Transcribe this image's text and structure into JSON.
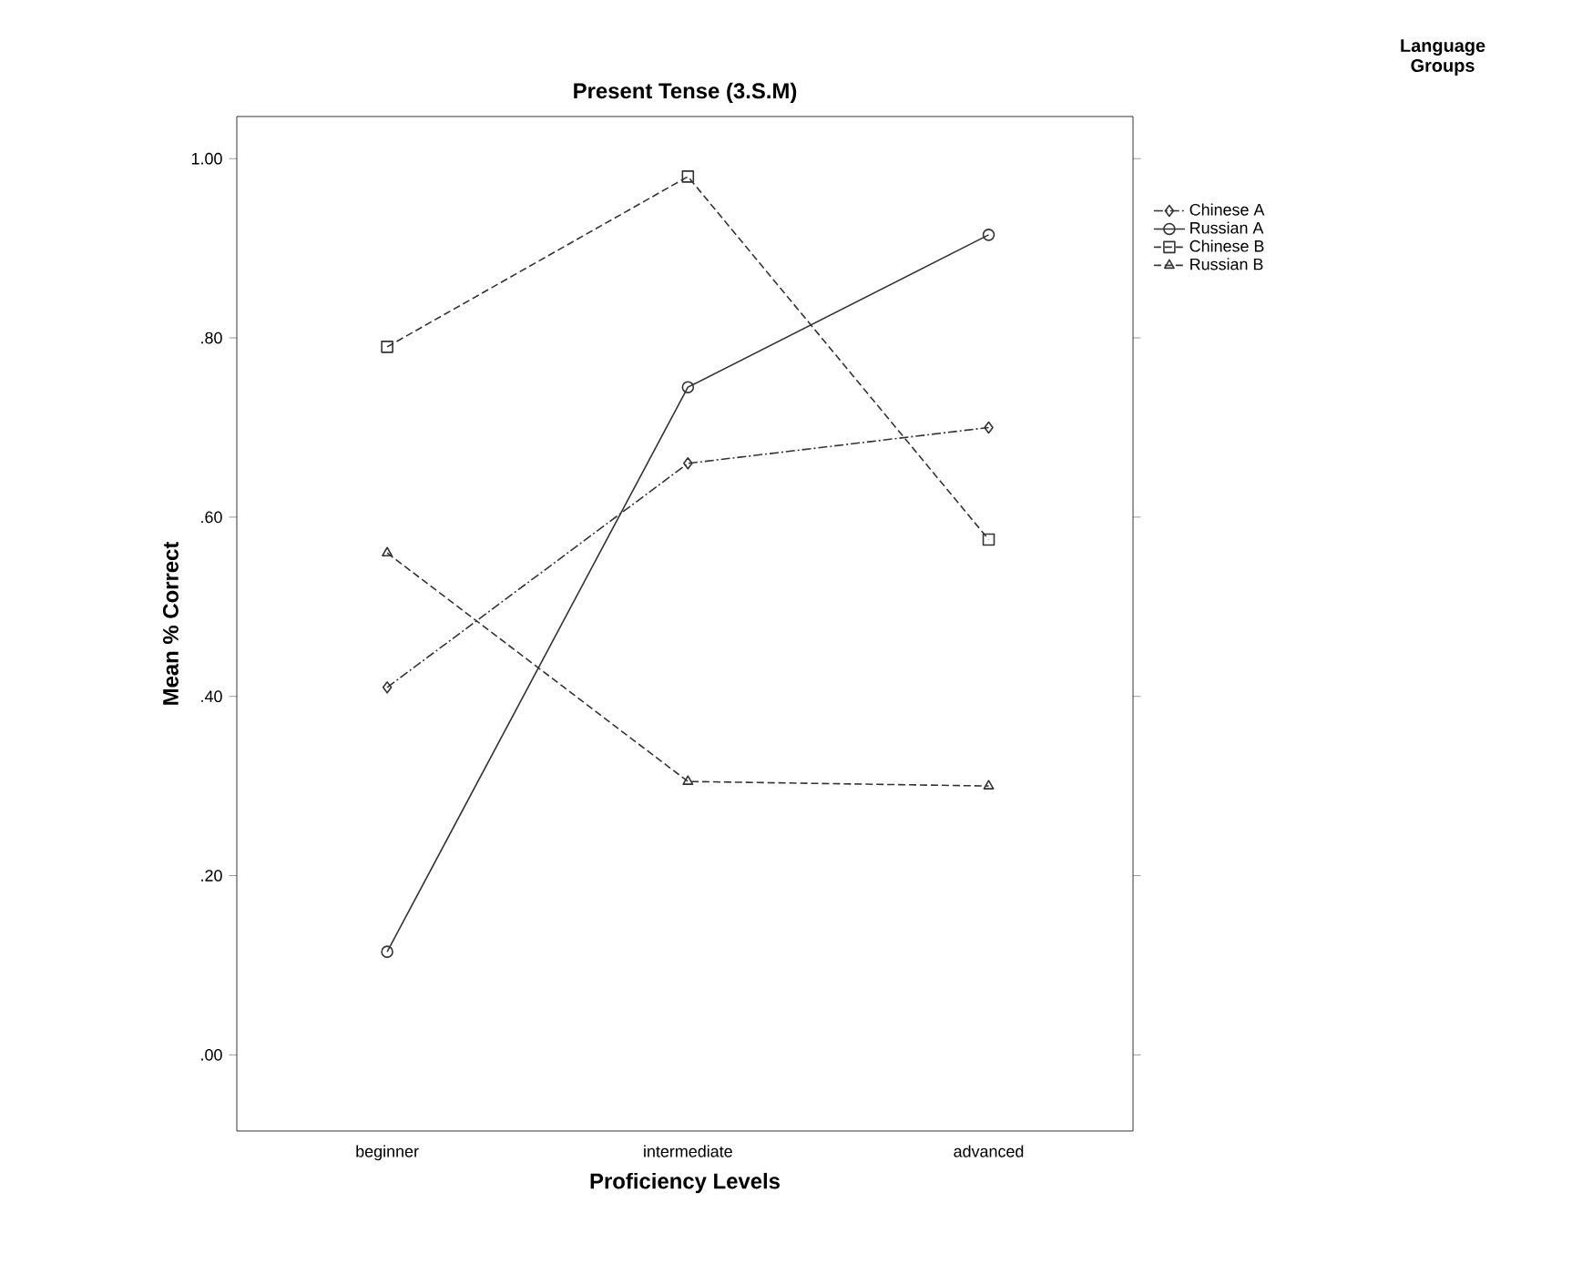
{
  "chart_data": {
    "type": "line",
    "title": "Present Tense (3.S.M)",
    "xlabel": "Proficiency Levels",
    "ylabel": "Mean % Correct",
    "legend_title": "Language Groups",
    "categories": [
      "beginner",
      "intermediate",
      "advanced"
    ],
    "series": [
      {
        "name": "Chinese A",
        "color": "#333333",
        "line_style": "dashdot",
        "marker": "diamond",
        "values": [
          0.41,
          0.66,
          0.7
        ]
      },
      {
        "name": "Russian A",
        "color": "#333333",
        "line_style": "solid",
        "marker": "circle",
        "values": [
          0.115,
          0.745,
          0.915
        ]
      },
      {
        "name": "Chinese B",
        "color": "#333333",
        "line_style": "dashed",
        "marker": "square",
        "values": [
          0.79,
          0.98,
          0.575
        ]
      },
      {
        "name": "Russian B",
        "color": "#333333",
        "line_style": "dashed",
        "marker": "triangle",
        "values": [
          0.56,
          0.305,
          0.3
        ]
      }
    ],
    "ylim": [
      -0.085,
      1.047
    ],
    "yticks": [
      {
        "value": 0,
        "label": ".00"
      },
      {
        "value": 0.2,
        "label": ".20"
      },
      {
        "value": 0.4,
        "label": ".40"
      },
      {
        "value": 0.6,
        "label": ".60"
      },
      {
        "value": 0.8,
        "label": ".80"
      },
      {
        "value": 1,
        "label": "1.00"
      }
    ],
    "grid": false,
    "legend": "right"
  }
}
